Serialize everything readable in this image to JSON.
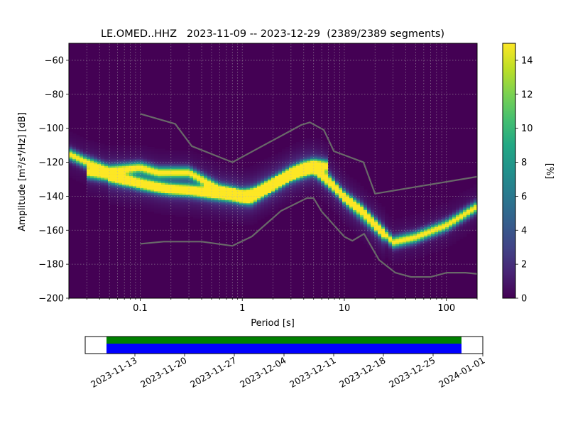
{
  "title": "LE.OMED..HHZ   2023-11-09 -- 2023-12-29  (2389/2389 segments)",
  "chart_data": [
    {
      "type": "heatmap",
      "xlabel": "Period [s]",
      "ylabel": "Amplitude [m²/s⁴/Hz] [dB]",
      "x_scale": "log",
      "xlim": [
        0.02,
        200
      ],
      "ylim": [
        -200,
        -50
      ],
      "x_ticks": [
        0.1,
        1,
        10,
        100
      ],
      "x_tick_labels": [
        "0.1",
        "1",
        "10",
        "100"
      ],
      "y_ticks": [
        -200,
        -180,
        -160,
        -140,
        -120,
        -100,
        -80,
        -60
      ],
      "y_tick_labels": [
        "−200",
        "−180",
        "−160",
        "−140",
        "−120",
        "−100",
        "−80",
        "−60"
      ],
      "grid": true,
      "colormap": "viridis",
      "colorbar": {
        "label": "[%]",
        "range": [
          0,
          15
        ],
        "ticks": [
          0,
          2,
          4,
          6,
          8,
          10,
          12,
          14
        ]
      },
      "density_ridges": [
        {
          "points": [
            [
              0.02,
              -115
            ],
            [
              0.03,
              -120
            ],
            [
              0.05,
              -125
            ],
            [
              0.07,
              -124
            ],
            [
              0.1,
              -123
            ],
            [
              0.15,
              -126
            ],
            [
              0.2,
              -126
            ],
            [
              0.3,
              -126
            ],
            [
              0.4,
              -130
            ],
            [
              0.6,
              -136
            ],
            [
              1,
              -139
            ],
            [
              1.3,
              -138
            ],
            [
              2,
              -132
            ],
            [
              3,
              -126
            ],
            [
              5,
              -121
            ],
            [
              7,
              -122
            ]
          ],
          "peak": 15
        },
        {
          "points": [
            [
              0.03,
              -126
            ],
            [
              0.05,
              -128
            ],
            [
              0.08,
              -131
            ],
            [
              0.1,
              -133
            ],
            [
              0.15,
              -135
            ],
            [
              0.2,
              -136
            ],
            [
              0.3,
              -136
            ],
            [
              0.5,
              -138
            ],
            [
              0.8,
              -139
            ],
            [
              1.2,
              -142
            ],
            [
              2,
              -134
            ],
            [
              3,
              -128
            ],
            [
              5,
              -124
            ],
            [
              7,
              -132
            ],
            [
              10,
              -140
            ],
            [
              15,
              -148
            ],
            [
              20,
              -156
            ],
            [
              30,
              -167
            ],
            [
              50,
              -164
            ],
            [
              100,
              -157
            ],
            [
              200,
              -146
            ]
          ],
          "peak": 15
        },
        {
          "points": [
            [
              0.05,
              -129
            ],
            [
              0.07,
              -131
            ],
            [
              0.1,
              -131
            ],
            [
              0.15,
              -134
            ],
            [
              0.3,
              -137
            ],
            [
              0.6,
              -139
            ],
            [
              1,
              -141
            ],
            [
              2,
              -133
            ],
            [
              4,
              -122
            ],
            [
              6,
              -124
            ],
            [
              8,
              -133
            ],
            [
              10,
              -142
            ],
            [
              15,
              -152
            ],
            [
              25,
              -164
            ]
          ],
          "peak": 7
        }
      ],
      "noise_models": [
        {
          "name": "high",
          "color": "#696969",
          "points": [
            [
              0.1,
              -91.5
            ],
            [
              0.22,
              -97.4
            ],
            [
              0.32,
              -110.5
            ],
            [
              0.8,
              -120
            ],
            [
              3.8,
              -98
            ],
            [
              4.6,
              -96.5
            ],
            [
              6.3,
              -101
            ],
            [
              7.9,
              -113.5
            ],
            [
              15.4,
              -120
            ],
            [
              20,
              -138.5
            ],
            [
              200,
              -128.5
            ]
          ]
        },
        {
          "name": "low",
          "color": "#696969",
          "points": [
            [
              0.1,
              -168
            ],
            [
              0.17,
              -166.7
            ],
            [
              0.4,
              -166.7
            ],
            [
              0.8,
              -169.2
            ],
            [
              1.24,
              -163.7
            ],
            [
              2.4,
              -148.6
            ],
            [
              4.3,
              -141.1
            ],
            [
              5,
              -141.1
            ],
            [
              6,
              -149
            ],
            [
              10,
              -163.8
            ],
            [
              12,
              -166.2
            ],
            [
              15.6,
              -162.1
            ],
            [
              21.9,
              -177.5
            ],
            [
              31.6,
              -185
            ],
            [
              45,
              -187.5
            ],
            [
              70,
              -187.5
            ],
            [
              101,
              -185
            ],
            [
              154,
              -185
            ],
            [
              200,
              -185.7
            ]
          ]
        }
      ]
    },
    {
      "type": "bar",
      "x_tick_labels": [
        "2023-11-13",
        "2023-11-20",
        "2023-11-27",
        "2023-12-04",
        "2023-12-11",
        "2023-12-18",
        "2023-12-25",
        "2024-01-01"
      ],
      "xlim": [
        "2023-11-06",
        "2024-01-01"
      ],
      "data_range": [
        "2023-11-09",
        "2023-12-29"
      ],
      "coverage_colors": {
        "top": "#008000",
        "bottom": "#0000ff"
      }
    }
  ]
}
